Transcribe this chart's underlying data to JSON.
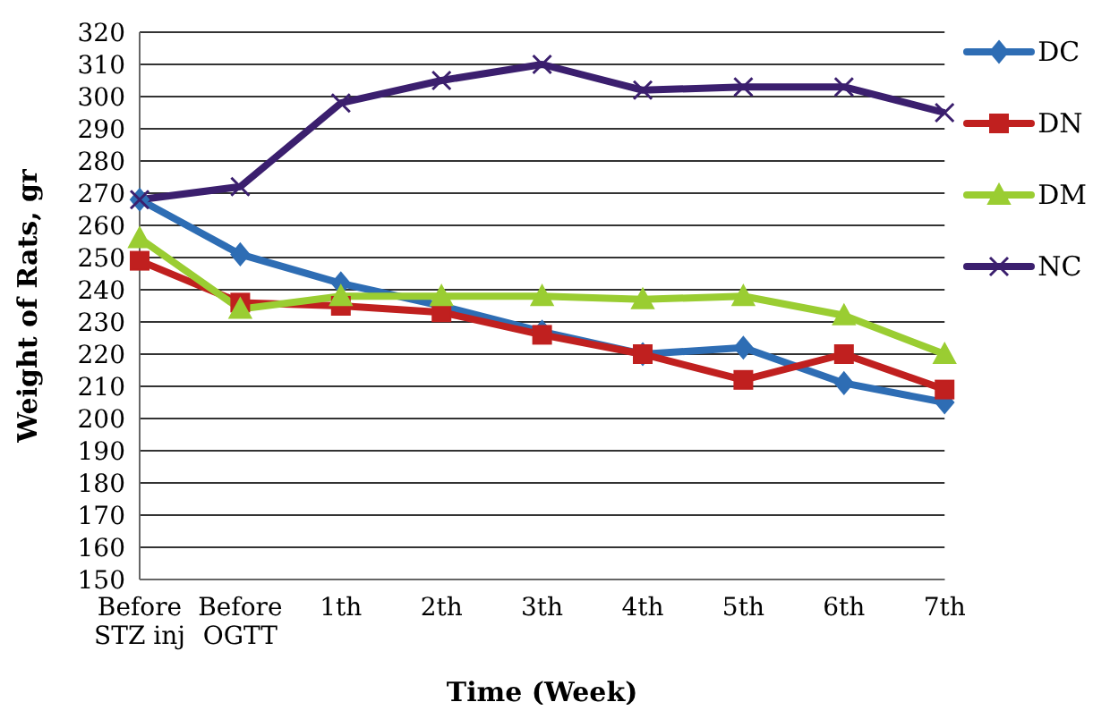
{
  "chart_data": {
    "type": "line",
    "xlabel": "Time (Week)",
    "ylabel": "Weight of Rats, gr",
    "categories": [
      "Before STZ inj",
      "Before OGTT",
      "1th",
      "2th",
      "3th",
      "4th",
      "5th",
      "6th",
      "7th"
    ],
    "series": [
      {
        "name": "DC",
        "color": "#2e6db4",
        "marker": "diamond",
        "values": [
          268,
          251,
          242,
          235,
          227,
          220,
          222,
          211,
          205
        ]
      },
      {
        "name": "DN",
        "color": "#c0201f",
        "marker": "square",
        "values": [
          249,
          236,
          235,
          233,
          226,
          220,
          212,
          220,
          209
        ]
      },
      {
        "name": "DM",
        "color": "#9acd32",
        "marker": "triangle",
        "values": [
          256,
          234,
          238,
          238,
          238,
          237,
          238,
          232,
          220
        ]
      },
      {
        "name": "NC",
        "color": "#3b1f6e",
        "marker": "cross",
        "values": [
          268,
          272,
          298,
          305,
          310,
          302,
          303,
          303,
          295
        ]
      }
    ],
    "ylim": [
      150,
      320
    ],
    "yticks": [
      150,
      160,
      170,
      180,
      190,
      200,
      210,
      220,
      230,
      240,
      250,
      260,
      270,
      280,
      290,
      300,
      310,
      320
    ],
    "grid": "y",
    "legend": "top right"
  }
}
